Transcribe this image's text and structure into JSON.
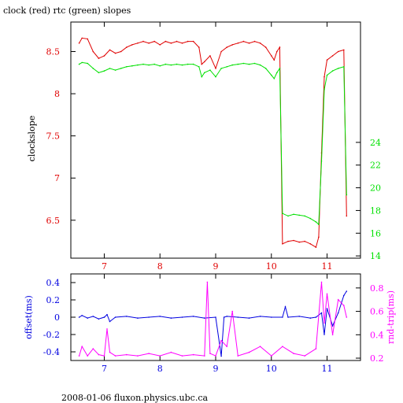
{
  "title": "clock (red) rtc (green) slopes",
  "footer": "2008-01-06 fluxon.physics.ubc.ca",
  "colors": {
    "clock": "#e00000",
    "rtc": "#00e000",
    "offset": "#0000e0",
    "rndtrip": "#ff00ff",
    "axes": "#000000"
  },
  "chart_data": [
    {
      "type": "line",
      "title": "clock (red) rtc (green) slopes",
      "xlim": [
        6.4,
        11.6
      ],
      "x_ticks": [
        7,
        8,
        9,
        10,
        11
      ],
      "y_left": {
        "label": "clockslope",
        "lim": [
          6.05,
          8.85
        ],
        "ticks": [
          6.5,
          7,
          7.5,
          8,
          8.5
        ]
      },
      "y_right": {
        "label": "",
        "lim": [
          13.8,
          34.6
        ],
        "ticks": [
          14,
          16,
          18,
          20,
          22,
          24
        ]
      },
      "series": [
        {
          "axis": "left",
          "color": "#e00000",
          "x": [
            6.55,
            6.6,
            6.7,
            6.8,
            6.9,
            7.0,
            7.1,
            7.2,
            7.3,
            7.4,
            7.5,
            7.6,
            7.7,
            7.8,
            7.9,
            8.0,
            8.1,
            8.2,
            8.3,
            8.4,
            8.5,
            8.6,
            8.7,
            8.75,
            8.8,
            8.9,
            9.0,
            9.1,
            9.2,
            9.3,
            9.4,
            9.5,
            9.6,
            9.7,
            9.8,
            9.9,
            10.0,
            10.05,
            10.1,
            10.15,
            10.2,
            10.3,
            10.4,
            10.5,
            10.6,
            10.7,
            10.8,
            10.85,
            10.9,
            10.95,
            11.0,
            11.1,
            11.2,
            11.3,
            11.35
          ],
          "y": [
            8.6,
            8.66,
            8.65,
            8.5,
            8.42,
            8.45,
            8.52,
            8.48,
            8.5,
            8.55,
            8.58,
            8.6,
            8.62,
            8.6,
            8.62,
            8.58,
            8.62,
            8.6,
            8.62,
            8.6,
            8.62,
            8.62,
            8.55,
            8.35,
            8.38,
            8.45,
            8.3,
            8.5,
            8.55,
            8.58,
            8.6,
            8.62,
            8.6,
            8.62,
            8.6,
            8.55,
            8.45,
            8.4,
            8.5,
            8.55,
            6.22,
            6.25,
            6.26,
            6.24,
            6.25,
            6.22,
            6.18,
            6.3,
            7.3,
            8.2,
            8.4,
            8.45,
            8.5,
            8.52,
            6.55
          ]
        },
        {
          "axis": "left",
          "color": "#00e000",
          "x": [
            6.55,
            6.6,
            6.7,
            6.8,
            6.9,
            7.0,
            7.1,
            7.2,
            7.3,
            7.4,
            7.5,
            7.6,
            7.7,
            7.8,
            7.9,
            8.0,
            8.1,
            8.2,
            8.3,
            8.4,
            8.5,
            8.6,
            8.7,
            8.75,
            8.8,
            8.9,
            9.0,
            9.1,
            9.2,
            9.3,
            9.4,
            9.5,
            9.6,
            9.7,
            9.8,
            9.9,
            10.0,
            10.05,
            10.1,
            10.15,
            10.2,
            10.3,
            10.4,
            10.5,
            10.6,
            10.7,
            10.8,
            10.85,
            10.9,
            10.95,
            11.0,
            11.1,
            11.2,
            11.3,
            11.35
          ],
          "y": [
            8.35,
            8.37,
            8.36,
            8.3,
            8.25,
            8.27,
            8.3,
            8.28,
            8.3,
            8.32,
            8.33,
            8.34,
            8.35,
            8.34,
            8.35,
            8.33,
            8.35,
            8.34,
            8.35,
            8.34,
            8.35,
            8.35,
            8.32,
            8.2,
            8.25,
            8.28,
            8.2,
            8.3,
            8.32,
            8.34,
            8.35,
            8.36,
            8.35,
            8.36,
            8.34,
            8.3,
            8.22,
            8.18,
            8.25,
            8.3,
            6.58,
            6.55,
            6.57,
            6.56,
            6.55,
            6.52,
            6.48,
            6.45,
            7.2,
            8.05,
            8.22,
            8.27,
            8.3,
            8.32,
            6.8
          ]
        }
      ]
    },
    {
      "type": "line",
      "xlim": [
        6.4,
        11.6
      ],
      "x_ticks": [
        7,
        8,
        9,
        10,
        11
      ],
      "y_left": {
        "label": "offset(ms)",
        "lim": [
          -0.5,
          0.5
        ],
        "ticks": [
          -0.4,
          -0.2,
          0,
          0.2,
          0.4
        ]
      },
      "y_right": {
        "label": "rnd-trip(ms)",
        "lim": [
          0.18,
          0.92
        ],
        "ticks": [
          0.2,
          0.4,
          0.6,
          0.8
        ]
      },
      "series": [
        {
          "axis": "left",
          "color": "#0000e0",
          "x": [
            6.55,
            6.6,
            6.7,
            6.8,
            6.9,
            7.0,
            7.05,
            7.1,
            7.2,
            7.4,
            7.6,
            7.8,
            8.0,
            8.2,
            8.4,
            8.6,
            8.8,
            9.0,
            9.1,
            9.15,
            9.2,
            9.4,
            9.6,
            9.8,
            10.0,
            10.2,
            10.25,
            10.3,
            10.5,
            10.7,
            10.8,
            10.9,
            10.95,
            11.0,
            11.1,
            11.2,
            11.3,
            11.35
          ],
          "y": [
            0.0,
            0.02,
            -0.01,
            0.01,
            -0.02,
            0.0,
            0.03,
            -0.05,
            0.0,
            0.01,
            -0.01,
            0.0,
            0.01,
            -0.01,
            0.0,
            0.01,
            -0.01,
            0.0,
            -0.45,
            0.0,
            0.01,
            0.0,
            -0.01,
            0.01,
            0.0,
            0.0,
            0.12,
            0.0,
            0.01,
            -0.01,
            0.0,
            0.05,
            -0.2,
            0.1,
            -0.1,
            0.05,
            0.25,
            0.3
          ]
        },
        {
          "axis": "right",
          "color": "#ff00ff",
          "x": [
            6.55,
            6.6,
            6.7,
            6.8,
            6.9,
            7.0,
            7.05,
            7.1,
            7.2,
            7.4,
            7.6,
            7.8,
            8.0,
            8.2,
            8.4,
            8.6,
            8.8,
            8.85,
            8.9,
            9.0,
            9.1,
            9.2,
            9.3,
            9.4,
            9.6,
            9.8,
            10.0,
            10.2,
            10.4,
            10.6,
            10.8,
            10.9,
            10.95,
            11.0,
            11.1,
            11.2,
            11.3,
            11.35
          ],
          "y": [
            0.22,
            0.3,
            0.22,
            0.28,
            0.23,
            0.22,
            0.45,
            0.25,
            0.22,
            0.23,
            0.22,
            0.24,
            0.22,
            0.25,
            0.22,
            0.23,
            0.22,
            0.85,
            0.24,
            0.22,
            0.35,
            0.3,
            0.6,
            0.22,
            0.25,
            0.3,
            0.22,
            0.3,
            0.24,
            0.22,
            0.28,
            0.85,
            0.5,
            0.75,
            0.4,
            0.7,
            0.65,
            0.55
          ]
        }
      ]
    }
  ]
}
